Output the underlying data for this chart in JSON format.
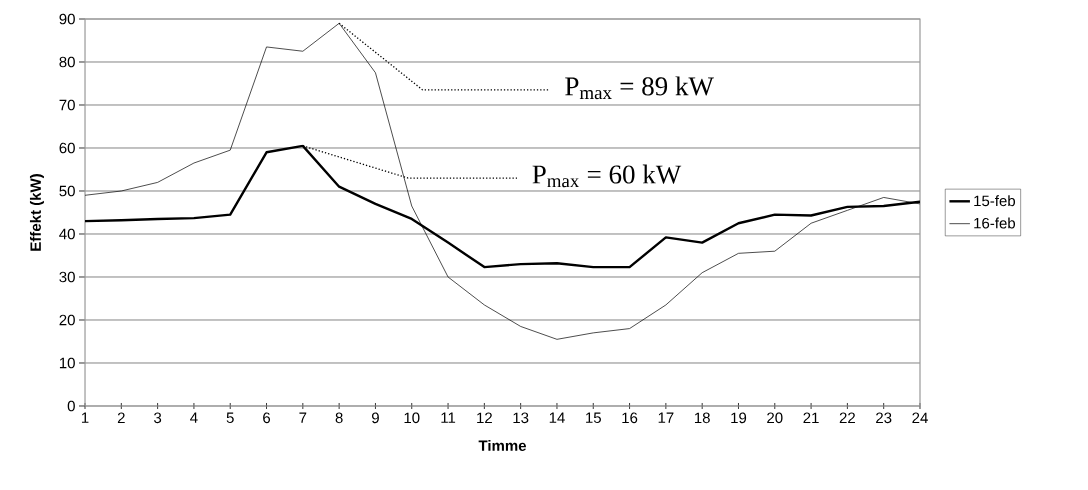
{
  "chart_data": {
    "type": "line",
    "xlabel": "Timme",
    "ylabel": "Effekt (kW)",
    "categories": [
      "1",
      "2",
      "3",
      "4",
      "5",
      "6",
      "7",
      "8",
      "9",
      "10",
      "11",
      "12",
      "13",
      "14",
      "15",
      "16",
      "17",
      "18",
      "19",
      "20",
      "21",
      "22",
      "23",
      "24"
    ],
    "series": [
      {
        "name": "15-feb",
        "color": "#000000",
        "values": [
          43,
          43.2,
          43.5,
          43.7,
          44.5,
          59,
          60.5,
          51,
          47,
          43.5,
          38,
          32.3,
          33,
          33.2,
          32.3,
          32.3,
          39.2,
          38,
          42.5,
          44.5,
          44.3,
          46.3,
          46.5,
          47.5
        ]
      },
      {
        "name": "16-feb",
        "color": "#000000",
        "values": [
          49,
          50,
          52,
          56.5,
          59.5,
          83.5,
          82.5,
          89,
          77.5,
          46.5,
          30,
          23.5,
          18.5,
          15.5,
          17,
          18,
          23.5,
          31,
          35.5,
          36,
          42.5,
          45.5,
          48.5,
          47
        ]
      }
    ],
    "ylim": [
      0,
      90
    ],
    "yticks": [
      0,
      10,
      20,
      30,
      40,
      50,
      60,
      70,
      80,
      90
    ],
    "grid": "y",
    "legend": "right",
    "marker": "none",
    "line_style": "solid",
    "annotations": [
      {
        "text": "P$_{max}$ = 89 kW",
        "x": "8",
        "y": 89
      },
      {
        "text": "P$_{max}$ = 60 kW",
        "x": "7",
        "y": 60.5
      }
    ]
  }
}
